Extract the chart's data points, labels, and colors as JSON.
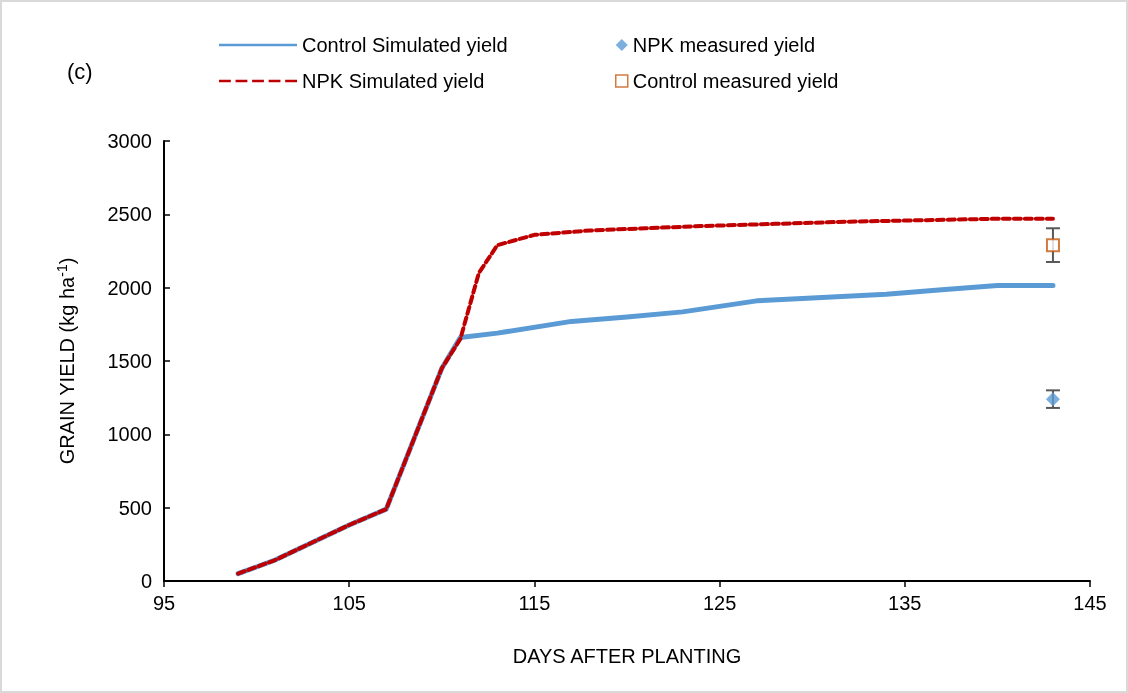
{
  "chart_data": {
    "type": "line",
    "xlabel": "DAYS AFTER PLANTING",
    "ylabel": "GRAIN YIELD (kg ha$^{-1}$)",
    "annotations": [
      "(c)"
    ],
    "xlim": [
      95,
      145
    ],
    "xticks": [
      95,
      105,
      115,
      125,
      135,
      145
    ],
    "ylim": [
      0,
      3000
    ],
    "yticks": [
      0,
      500,
      1000,
      1500,
      2000,
      2500,
      3000
    ],
    "grid": false,
    "legend": "top",
    "marker": "none",
    "series": [
      {
        "name": "Control Simulated yield",
        "color": "#5b9bd5",
        "line_style": "solid",
        "x": [
          99,
          101,
          105,
          107,
          110,
          111,
          113,
          117,
          120,
          123,
          127,
          130,
          134,
          137,
          140,
          143
        ],
        "values": [
          50,
          143,
          382,
          490,
          1450,
          1660,
          1690,
          1770,
          1800,
          1835,
          1910,
          1930,
          1955,
          1985,
          2015,
          2015
        ]
      },
      {
        "name": "NPK measured yield",
        "type": "scatter",
        "marker": "diamond",
        "color": "#5b9bd5",
        "x": [
          143
        ],
        "values": [
          1240
        ],
        "errors": [
          60
        ]
      },
      {
        "name": "NPK Simulated yield",
        "color": "#c00000",
        "line_style": "dashed",
        "x": [
          99,
          101,
          105,
          107,
          110,
          111,
          112,
          113,
          115,
          118,
          121,
          124,
          128,
          132,
          136,
          140,
          143
        ],
        "values": [
          50,
          143,
          382,
          490,
          1450,
          1650,
          2100,
          2290,
          2360,
          2390,
          2405,
          2420,
          2435,
          2450,
          2460,
          2470,
          2470
        ]
      },
      {
        "name": "Control measured yield",
        "type": "scatter",
        "marker": "square",
        "color": "#c55a11",
        "x": [
          143
        ],
        "values": [
          2290
        ],
        "errors": [
          115
        ]
      }
    ]
  }
}
